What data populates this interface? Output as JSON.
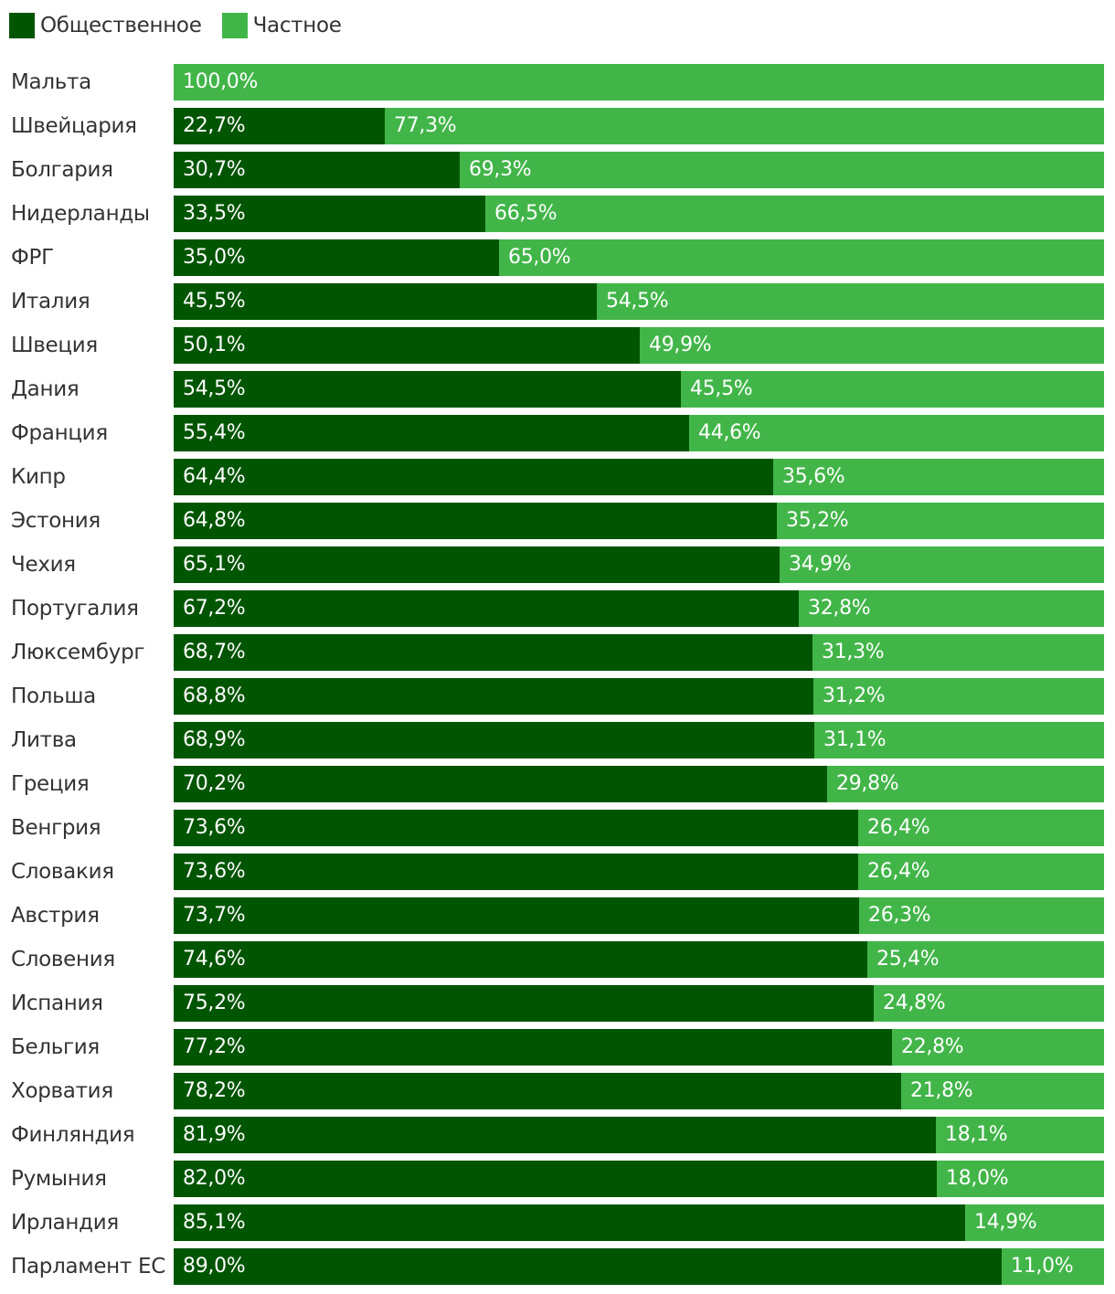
{
  "legend": {
    "public_label": "Общественное",
    "private_label": "Частное"
  },
  "colors": {
    "public": "#005500",
    "private": "#42b549",
    "text": "#333333",
    "value_text": "#ffffff"
  },
  "chart_data": {
    "type": "bar",
    "orientation": "horizontal",
    "stacked": true,
    "percent": true,
    "legend_position": "top-left",
    "xlim": [
      0,
      100
    ],
    "categories": [
      "Мальта",
      "Швейцария",
      "Болгария",
      "Нидерланды",
      "ФРГ",
      "Италия",
      "Швеция",
      "Дания",
      "Франция",
      "Кипр",
      "Эстония",
      "Чехия",
      "Португалия",
      "Люксембург",
      "Польша",
      "Литва",
      "Греция",
      "Венгрия",
      "Словакия",
      "Австрия",
      "Словения",
      "Испания",
      "Бельгия",
      "Хорватия",
      "Финляндия",
      "Румыния",
      "Ирландия",
      "Парламент ЕС"
    ],
    "series": [
      {
        "name": "Общественное",
        "values": [
          0,
          22.7,
          30.7,
          33.5,
          35.0,
          45.5,
          50.1,
          54.5,
          55.4,
          64.4,
          64.8,
          65.1,
          67.2,
          68.7,
          68.8,
          68.9,
          70.2,
          73.6,
          73.6,
          73.7,
          74.6,
          75.2,
          77.2,
          78.2,
          81.9,
          82.0,
          85.1,
          89.0
        ],
        "labels": [
          "",
          "22,7%",
          "30,7%",
          "33,5%",
          "35,0%",
          "45,5%",
          "50,1%",
          "54,5%",
          "55,4%",
          "64,4%",
          "64,8%",
          "65,1%",
          "67,2%",
          "68,7%",
          "68,8%",
          "68,9%",
          "70,2%",
          "73,6%",
          "73,6%",
          "73,7%",
          "74,6%",
          "75,2%",
          "77,2%",
          "78,2%",
          "81,9%",
          "82,0%",
          "85,1%",
          "89,0%"
        ]
      },
      {
        "name": "Частное",
        "values": [
          100.0,
          77.3,
          69.3,
          66.5,
          65.0,
          54.5,
          49.9,
          45.5,
          44.6,
          35.6,
          35.2,
          34.9,
          32.8,
          31.3,
          31.2,
          31.1,
          29.8,
          26.4,
          26.4,
          26.3,
          25.4,
          24.8,
          22.8,
          21.8,
          18.1,
          18.0,
          14.9,
          11.0
        ],
        "labels": [
          "100,0%",
          "77,3%",
          "69,3%",
          "66,5%",
          "65,0%",
          "54,5%",
          "49,9%",
          "45,5%",
          "44,6%",
          "35,6%",
          "35,2%",
          "34,9%",
          "32,8%",
          "31,3%",
          "31,2%",
          "31,1%",
          "29,8%",
          "26,4%",
          "26,4%",
          "26,3%",
          "25,4%",
          "24,8%",
          "22,8%",
          "21,8%",
          "18,1%",
          "18,0%",
          "14,9%",
          "11,0%"
        ]
      }
    ]
  }
}
